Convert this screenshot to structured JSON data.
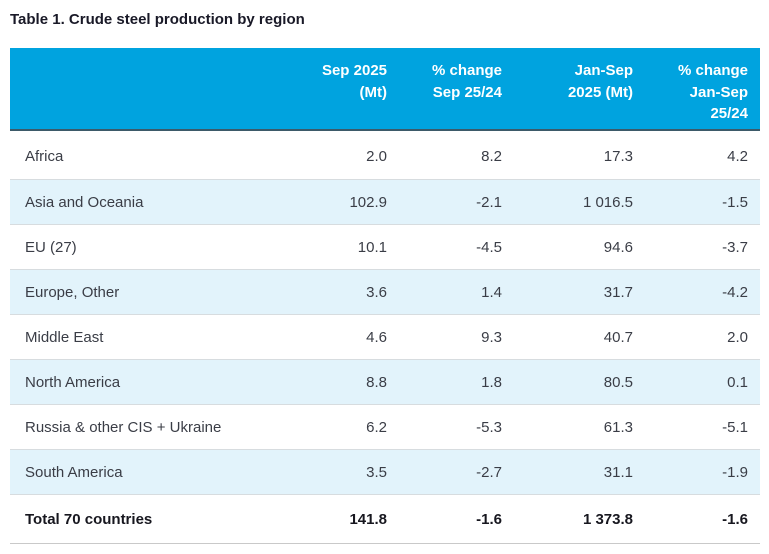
{
  "title": "Table 1. Crude steel production by region",
  "colors": {
    "header_bg": "#00a3df",
    "header_text": "#ffffff",
    "alt_row_bg": "#e2f3fb",
    "header_underline": "#3d5a69",
    "row_divider": "#d7dcdf",
    "table_bottom_border": "#c9c9c9",
    "body_text": "#3a3d46",
    "title_text": "#191927"
  },
  "table": {
    "columns": [
      {
        "key": "region",
        "label": ""
      },
      {
        "key": "sep_mt",
        "label": "Sep 2025\n(Mt)"
      },
      {
        "key": "pct_sep",
        "label": "% change\nSep 25/24"
      },
      {
        "key": "jansep_mt",
        "label": "Jan-Sep\n2025 (Mt)"
      },
      {
        "key": "pct_jansep",
        "label": "% change\nJan-Sep\n25/24"
      }
    ],
    "rows": [
      {
        "region": "Africa",
        "sep_mt": "2.0",
        "pct_sep": "8.2",
        "jansep_mt": "17.3",
        "pct_jansep": "4.2"
      },
      {
        "region": "Asia and Oceania",
        "sep_mt": "102.9",
        "pct_sep": "-2.1",
        "jansep_mt": "1 016.5",
        "pct_jansep": "-1.5"
      },
      {
        "region": "EU (27)",
        "sep_mt": "10.1",
        "pct_sep": "-4.5",
        "jansep_mt": "94.6",
        "pct_jansep": "-3.7"
      },
      {
        "region": "Europe, Other",
        "sep_mt": "3.6",
        "pct_sep": "1.4",
        "jansep_mt": "31.7",
        "pct_jansep": "-4.2"
      },
      {
        "region": "Middle East",
        "sep_mt": "4.6",
        "pct_sep": "9.3",
        "jansep_mt": "40.7",
        "pct_jansep": "2.0"
      },
      {
        "region": "North America",
        "sep_mt": "8.8",
        "pct_sep": "1.8",
        "jansep_mt": "80.5",
        "pct_jansep": "0.1"
      },
      {
        "region": "Russia & other CIS + Ukraine",
        "sep_mt": "6.2",
        "pct_sep": "-5.3",
        "jansep_mt": "61.3",
        "pct_jansep": "-5.1"
      },
      {
        "region": "South America",
        "sep_mt": "3.5",
        "pct_sep": "-2.7",
        "jansep_mt": "31.1",
        "pct_jansep": "-1.9"
      }
    ],
    "total_row": {
      "region": "Total 70 countries",
      "sep_mt": "141.8",
      "pct_sep": "-1.6",
      "jansep_mt": "1 373.8",
      "pct_jansep": "-1.6"
    }
  }
}
